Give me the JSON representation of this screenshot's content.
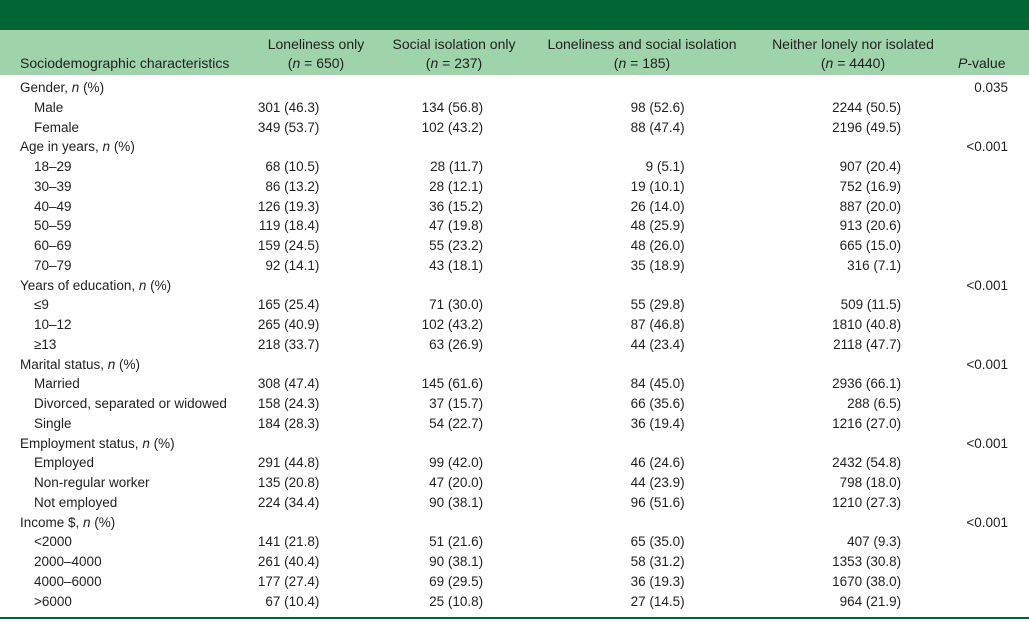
{
  "header": {
    "col0": "Sociodemographic characteristics",
    "col1_l1": "Loneliness only",
    "col1_l2": "(n = 650)",
    "col2_l1": "Social isolation only",
    "col2_l2": "(n = 237)",
    "col3_l1": "Loneliness and social isolation",
    "col3_l2": "(n = 185)",
    "col4_l1": "Neither lonely nor isolated",
    "col4_l2": "(n = 4440)",
    "col5": "P-value"
  },
  "rows": [
    {
      "label": "Gender, n (%)",
      "group": true,
      "p": "0.035"
    },
    {
      "label": "Male",
      "v1": "301 (46.3)",
      "v2": "134 (56.8)",
      "v3": "98 (52.6)",
      "v4": "2244 (50.5)"
    },
    {
      "label": "Female",
      "v1": "349 (53.7)",
      "v2": "102 (43.2)",
      "v3": "88 (47.4)",
      "v4": "2196 (49.5)"
    },
    {
      "label": "Age in years, n (%)",
      "group": true,
      "p": "<0.001"
    },
    {
      "label": "18–29",
      "v1": "68 (10.5)",
      "v2": "28 (11.7)",
      "v3": "9 (5.1)",
      "v4": "907 (20.4)"
    },
    {
      "label": "30–39",
      "v1": "86 (13.2)",
      "v2": "28 (12.1)",
      "v3": "19 (10.1)",
      "v4": "752 (16.9)"
    },
    {
      "label": "40–49",
      "v1": "126 (19.3)",
      "v2": "36 (15.2)",
      "v3": "26 (14.0)",
      "v4": "887 (20.0)"
    },
    {
      "label": "50–59",
      "v1": "119 (18.4)",
      "v2": "47 (19.8)",
      "v3": "48 (25.9)",
      "v4": "913 (20.6)"
    },
    {
      "label": "60–69",
      "v1": "159 (24.5)",
      "v2": "55 (23.2)",
      "v3": "48 (26.0)",
      "v4": "665 (15.0)"
    },
    {
      "label": "70–79",
      "v1": "92 (14.1)",
      "v2": "43 (18.1)",
      "v3": "35 (18.9)",
      "v4": "316 (7.1)"
    },
    {
      "label": "Years of education, n (%)",
      "group": true,
      "p": "<0.001"
    },
    {
      "label": "≤9",
      "v1": "165 (25.4)",
      "v2": "71 (30.0)",
      "v3": "55 (29.8)",
      "v4": "509 (11.5)"
    },
    {
      "label": "10–12",
      "v1": "265 (40.9)",
      "v2": "102 (43.2)",
      "v3": "87 (46.8)",
      "v4": "1810 (40.8)"
    },
    {
      "label": "≥13",
      "v1": "218 (33.7)",
      "v2": "63 (26.9)",
      "v3": "44 (23.4)",
      "v4": "2118 (47.7)"
    },
    {
      "label": "Marital status, n (%)",
      "group": true,
      "p": "<0.001"
    },
    {
      "label": "Married",
      "v1": "308 (47.4)",
      "v2": "145 (61.6)",
      "v3": "84 (45.0)",
      "v4": "2936 (66.1)"
    },
    {
      "label": "Divorced, separated or widowed",
      "v1": "158 (24.3)",
      "v2": "37 (15.7)",
      "v3": "66 (35.6)",
      "v4": "288 (6.5)"
    },
    {
      "label": "Single",
      "v1": "184 (28.3)",
      "v2": "54 (22.7)",
      "v3": "36 (19.4)",
      "v4": "1216 (27.0)"
    },
    {
      "label": "Employment status, n (%)",
      "group": true,
      "p": "<0.001"
    },
    {
      "label": "Employed",
      "v1": "291 (44.8)",
      "v2": "99 (42.0)",
      "v3": "46 (24.6)",
      "v4": "2432 (54.8)"
    },
    {
      "label": "Non-regular worker",
      "v1": "135 (20.8)",
      "v2": "47 (20.0)",
      "v3": "44 (23.9)",
      "v4": "798 (18.0)"
    },
    {
      "label": "Not employed",
      "v1": "224 (34.4)",
      "v2": "90 (38.1)",
      "v3": "96 (51.6)",
      "v4": "1210 (27.3)"
    },
    {
      "label": "Income $, n (%)",
      "group": true,
      "p": "<0.001"
    },
    {
      "label": "<2000",
      "v1": "141 (21.8)",
      "v2": "51 (21.6)",
      "v3": "65 (35.0)",
      "v4": "407 (9.3)"
    },
    {
      "label": "2000–4000",
      "v1": "261 (40.4)",
      "v2": "90 (38.1)",
      "v3": "58 (31.2)",
      "v4": "1353 (30.8)"
    },
    {
      "label": "4000–6000",
      "v1": "177 (27.4)",
      "v2": "69 (29.5)",
      "v3": "36 (19.3)",
      "v4": "1670 (38.0)"
    },
    {
      "label": ">6000",
      "v1": "67 (10.4)",
      "v2": "25 (10.8)",
      "v3": "27 (14.5)",
      "v4": "964 (21.9)"
    }
  ],
  "colors": {
    "title_bar": "#006633",
    "header_band": "#9fd3a9",
    "text": "#231f20"
  }
}
